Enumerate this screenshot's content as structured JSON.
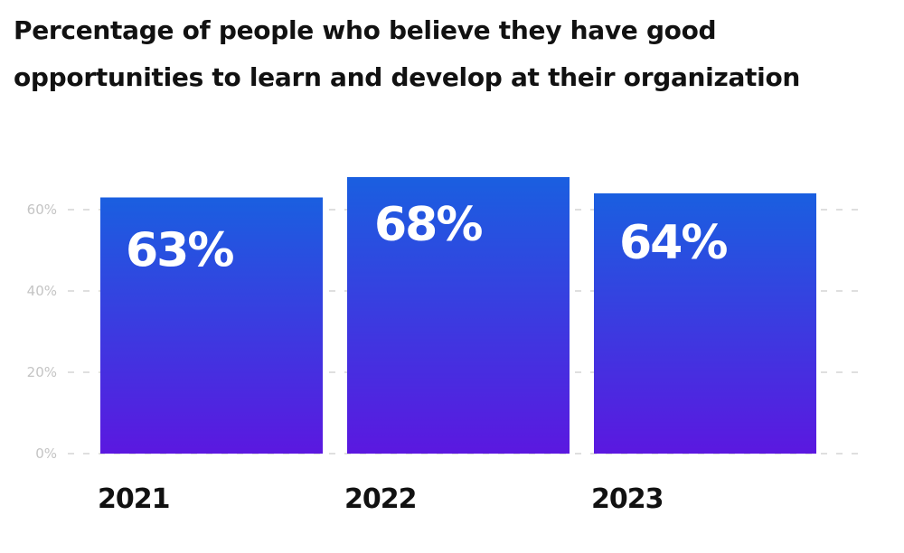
{
  "chart_data": {
    "type": "bar",
    "title": "Percentage of people who believe they have good opportunities to learn and develop at their organization",
    "categories": [
      "2021",
      "2022",
      "2023"
    ],
    "values": [
      63,
      68,
      64
    ],
    "value_labels": [
      "63%",
      "68%",
      "64%"
    ],
    "ylim": [
      0,
      68
    ],
    "yticks": [
      0,
      20,
      40,
      60
    ],
    "ytick_labels": [
      "0%",
      "20%",
      "40%",
      "60%"
    ],
    "xlabel": "",
    "ylabel": "",
    "grid": "horizontal dashed",
    "legend": "none",
    "colors": {
      "bar_top": "#1a5fe0",
      "bar_bottom": "#5b18e0",
      "grid": "#cccccc",
      "tick_text": "#c4c4c4",
      "value_text": "#ffffff",
      "category_text": "#111111"
    }
  }
}
